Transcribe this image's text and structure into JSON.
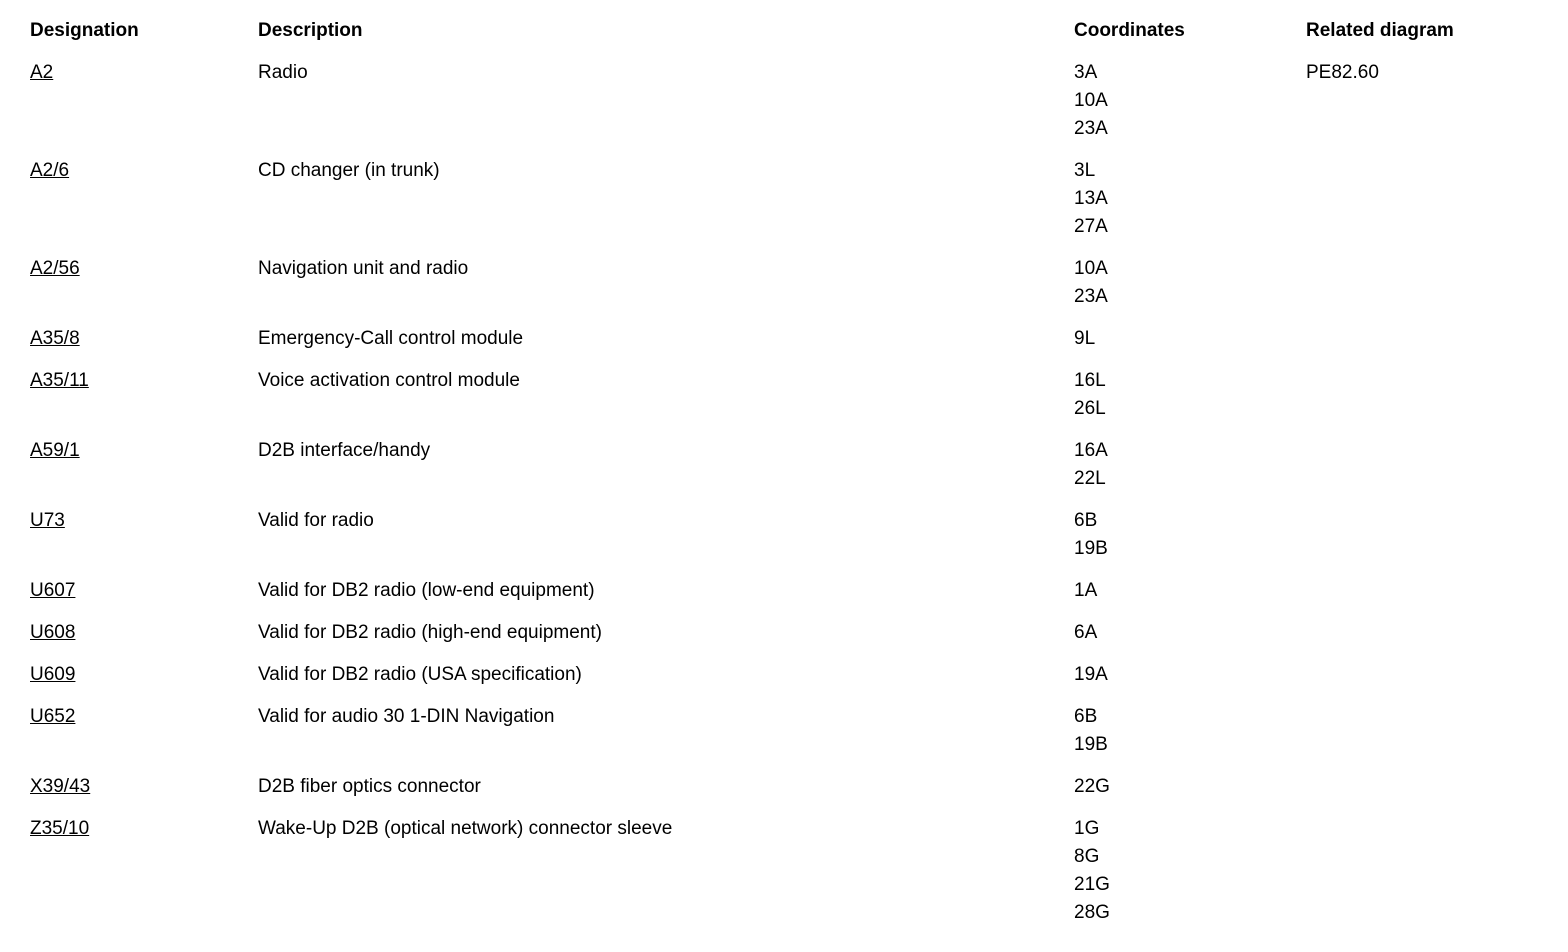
{
  "table": {
    "headers": {
      "designation": "Designation",
      "description": "Description",
      "coordinates": "Coordinates",
      "related_diagram": "Related diagram"
    },
    "rows": [
      {
        "designation": "A2",
        "description": "Radio",
        "coordinates": [
          "3A",
          "10A",
          "23A"
        ],
        "related_diagram": "PE82.60"
      },
      {
        "designation": "A2/6",
        "description": "CD changer (in trunk)",
        "coordinates": [
          "3L",
          "13A",
          "27A"
        ]
      },
      {
        "designation": "A2/56",
        "description": "Navigation unit and radio",
        "coordinates": [
          "10A",
          "23A"
        ]
      },
      {
        "designation": "A35/8",
        "description": "Emergency-Call control module",
        "coordinates": [
          "9L"
        ]
      },
      {
        "designation": "A35/11",
        "description": "Voice activation control module",
        "coordinates": [
          "16L",
          "26L"
        ]
      },
      {
        "designation": "A59/1",
        "description": "D2B interface/handy",
        "coordinates": [
          "16A",
          "22L"
        ]
      },
      {
        "designation": "U73",
        "description": "Valid for radio",
        "coordinates": [
          "6B",
          "19B"
        ]
      },
      {
        "designation": "U607",
        "description": "Valid for DB2 radio (low-end equipment)",
        "coordinates": [
          "1A"
        ]
      },
      {
        "designation": "U608",
        "description": "Valid for DB2 radio (high-end equipment)",
        "coordinates": [
          "6A"
        ]
      },
      {
        "designation": "U609",
        "description": "Valid for DB2 radio (USA specification)",
        "coordinates": [
          "19A"
        ]
      },
      {
        "designation": "U652",
        "description": "Valid for audio 30 1-DIN Navigation",
        "coordinates": [
          "6B",
          "19B"
        ]
      },
      {
        "designation": "X39/43",
        "description": "D2B fiber optics connector",
        "coordinates": [
          "22G"
        ]
      },
      {
        "designation": "Z35/10",
        "description": "Wake-Up D2B (optical network) connector sleeve",
        "coordinates": [
          "1G",
          "8G",
          "21G",
          "28G"
        ]
      }
    ],
    "text_color": "#000000",
    "background_color": "#ffffff"
  }
}
